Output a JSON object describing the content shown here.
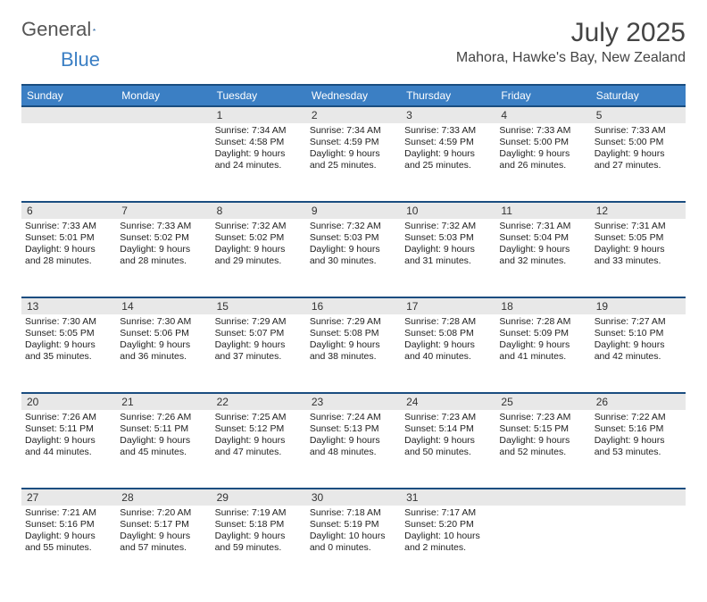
{
  "logo": {
    "text1": "General",
    "text2": "Blue"
  },
  "title": "July 2025",
  "location": "Mahora, Hawke's Bay, New Zealand",
  "colors": {
    "header_bg": "#3b7fc4",
    "header_border": "#1a4d80",
    "daynum_bg": "#e8e8e8",
    "logo_accent": "#3b7fc4"
  },
  "weekdays": [
    "Sunday",
    "Monday",
    "Tuesday",
    "Wednesday",
    "Thursday",
    "Friday",
    "Saturday"
  ],
  "weeks": [
    [
      null,
      null,
      {
        "n": "1",
        "sr": "7:34 AM",
        "ss": "4:58 PM",
        "dl": "9 hours and 24 minutes."
      },
      {
        "n": "2",
        "sr": "7:34 AM",
        "ss": "4:59 PM",
        "dl": "9 hours and 25 minutes."
      },
      {
        "n": "3",
        "sr": "7:33 AM",
        "ss": "4:59 PM",
        "dl": "9 hours and 25 minutes."
      },
      {
        "n": "4",
        "sr": "7:33 AM",
        "ss": "5:00 PM",
        "dl": "9 hours and 26 minutes."
      },
      {
        "n": "5",
        "sr": "7:33 AM",
        "ss": "5:00 PM",
        "dl": "9 hours and 27 minutes."
      }
    ],
    [
      {
        "n": "6",
        "sr": "7:33 AM",
        "ss": "5:01 PM",
        "dl": "9 hours and 28 minutes."
      },
      {
        "n": "7",
        "sr": "7:33 AM",
        "ss": "5:02 PM",
        "dl": "9 hours and 28 minutes."
      },
      {
        "n": "8",
        "sr": "7:32 AM",
        "ss": "5:02 PM",
        "dl": "9 hours and 29 minutes."
      },
      {
        "n": "9",
        "sr": "7:32 AM",
        "ss": "5:03 PM",
        "dl": "9 hours and 30 minutes."
      },
      {
        "n": "10",
        "sr": "7:32 AM",
        "ss": "5:03 PM",
        "dl": "9 hours and 31 minutes."
      },
      {
        "n": "11",
        "sr": "7:31 AM",
        "ss": "5:04 PM",
        "dl": "9 hours and 32 minutes."
      },
      {
        "n": "12",
        "sr": "7:31 AM",
        "ss": "5:05 PM",
        "dl": "9 hours and 33 minutes."
      }
    ],
    [
      {
        "n": "13",
        "sr": "7:30 AM",
        "ss": "5:05 PM",
        "dl": "9 hours and 35 minutes."
      },
      {
        "n": "14",
        "sr": "7:30 AM",
        "ss": "5:06 PM",
        "dl": "9 hours and 36 minutes."
      },
      {
        "n": "15",
        "sr": "7:29 AM",
        "ss": "5:07 PM",
        "dl": "9 hours and 37 minutes."
      },
      {
        "n": "16",
        "sr": "7:29 AM",
        "ss": "5:08 PM",
        "dl": "9 hours and 38 minutes."
      },
      {
        "n": "17",
        "sr": "7:28 AM",
        "ss": "5:08 PM",
        "dl": "9 hours and 40 minutes."
      },
      {
        "n": "18",
        "sr": "7:28 AM",
        "ss": "5:09 PM",
        "dl": "9 hours and 41 minutes."
      },
      {
        "n": "19",
        "sr": "7:27 AM",
        "ss": "5:10 PM",
        "dl": "9 hours and 42 minutes."
      }
    ],
    [
      {
        "n": "20",
        "sr": "7:26 AM",
        "ss": "5:11 PM",
        "dl": "9 hours and 44 minutes."
      },
      {
        "n": "21",
        "sr": "7:26 AM",
        "ss": "5:11 PM",
        "dl": "9 hours and 45 minutes."
      },
      {
        "n": "22",
        "sr": "7:25 AM",
        "ss": "5:12 PM",
        "dl": "9 hours and 47 minutes."
      },
      {
        "n": "23",
        "sr": "7:24 AM",
        "ss": "5:13 PM",
        "dl": "9 hours and 48 minutes."
      },
      {
        "n": "24",
        "sr": "7:23 AM",
        "ss": "5:14 PM",
        "dl": "9 hours and 50 minutes."
      },
      {
        "n": "25",
        "sr": "7:23 AM",
        "ss": "5:15 PM",
        "dl": "9 hours and 52 minutes."
      },
      {
        "n": "26",
        "sr": "7:22 AM",
        "ss": "5:16 PM",
        "dl": "9 hours and 53 minutes."
      }
    ],
    [
      {
        "n": "27",
        "sr": "7:21 AM",
        "ss": "5:16 PM",
        "dl": "9 hours and 55 minutes."
      },
      {
        "n": "28",
        "sr": "7:20 AM",
        "ss": "5:17 PM",
        "dl": "9 hours and 57 minutes."
      },
      {
        "n": "29",
        "sr": "7:19 AM",
        "ss": "5:18 PM",
        "dl": "9 hours and 59 minutes."
      },
      {
        "n": "30",
        "sr": "7:18 AM",
        "ss": "5:19 PM",
        "dl": "10 hours and 0 minutes."
      },
      {
        "n": "31",
        "sr": "7:17 AM",
        "ss": "5:20 PM",
        "dl": "10 hours and 2 minutes."
      },
      null,
      null
    ]
  ],
  "labels": {
    "sunrise": "Sunrise:",
    "sunset": "Sunset:",
    "daylight": "Daylight:"
  }
}
